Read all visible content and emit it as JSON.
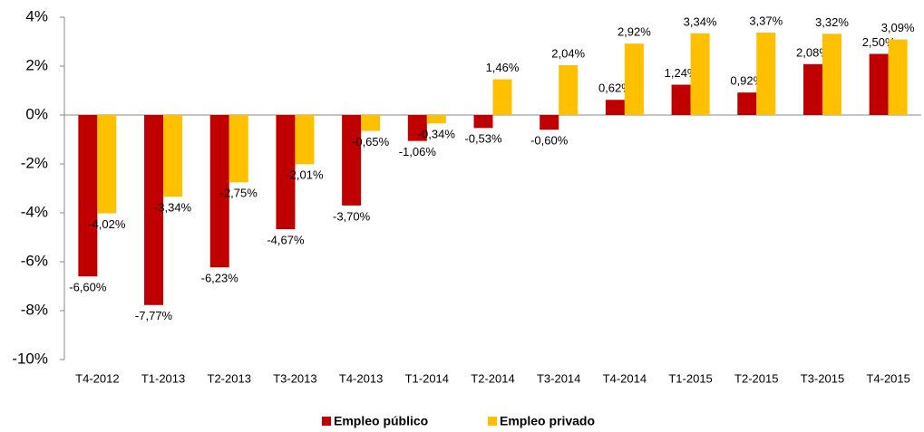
{
  "chart_data": {
    "type": "bar",
    "categories": [
      "T4-2012",
      "T1-2013",
      "T2-2013",
      "T3-2013",
      "T4-2013",
      "T1-2014",
      "T2-2014",
      "T3-2014",
      "T4-2014",
      "T1-2015",
      "T2-2015",
      "T3-2015",
      "T4-2015"
    ],
    "series": [
      {
        "name": "Empleo público",
        "color": "#c00000",
        "values": [
          -6.6,
          -7.77,
          -6.23,
          -4.67,
          -3.7,
          -1.06,
          -0.53,
          -0.6,
          0.62,
          1.24,
          0.92,
          2.08,
          2.5
        ],
        "value_labels": [
          "-6,60%",
          "-7,77%",
          "-6,23%",
          "-4,67%",
          "-3,70%",
          "-1,06%",
          "-0,53%",
          "-0,60%",
          "0,62%",
          "1,24%",
          "0,92%",
          "2,08%",
          "2,50%"
        ]
      },
      {
        "name": "Empleo privado",
        "color": "#ffc000",
        "values": [
          -4.02,
          -3.34,
          -2.75,
          -2.01,
          -0.65,
          -0.34,
          1.46,
          2.04,
          2.92,
          3.34,
          3.37,
          3.32,
          3.09
        ],
        "value_labels": [
          "-4,02%",
          "-3,34%",
          "-2,75%",
          "-2,01%",
          "-0,65%",
          "-0,34%",
          "1,46%",
          "2,04%",
          "2,92%",
          "3,34%",
          "3,37%",
          "3,32%",
          "3,09%"
        ]
      }
    ],
    "ylim": [
      -10,
      4
    ],
    "yticks": [
      {
        "value": -10,
        "label": "-10%"
      },
      {
        "value": -8,
        "label": "-8%"
      },
      {
        "value": -6,
        "label": "-6%"
      },
      {
        "value": -4,
        "label": "-4%"
      },
      {
        "value": -2,
        "label": "-2%"
      },
      {
        "value": 0,
        "label": "0%"
      },
      {
        "value": 2,
        "label": "2%"
      },
      {
        "value": 4,
        "label": "4%"
      }
    ],
    "grid": false,
    "legend": "bottom"
  }
}
